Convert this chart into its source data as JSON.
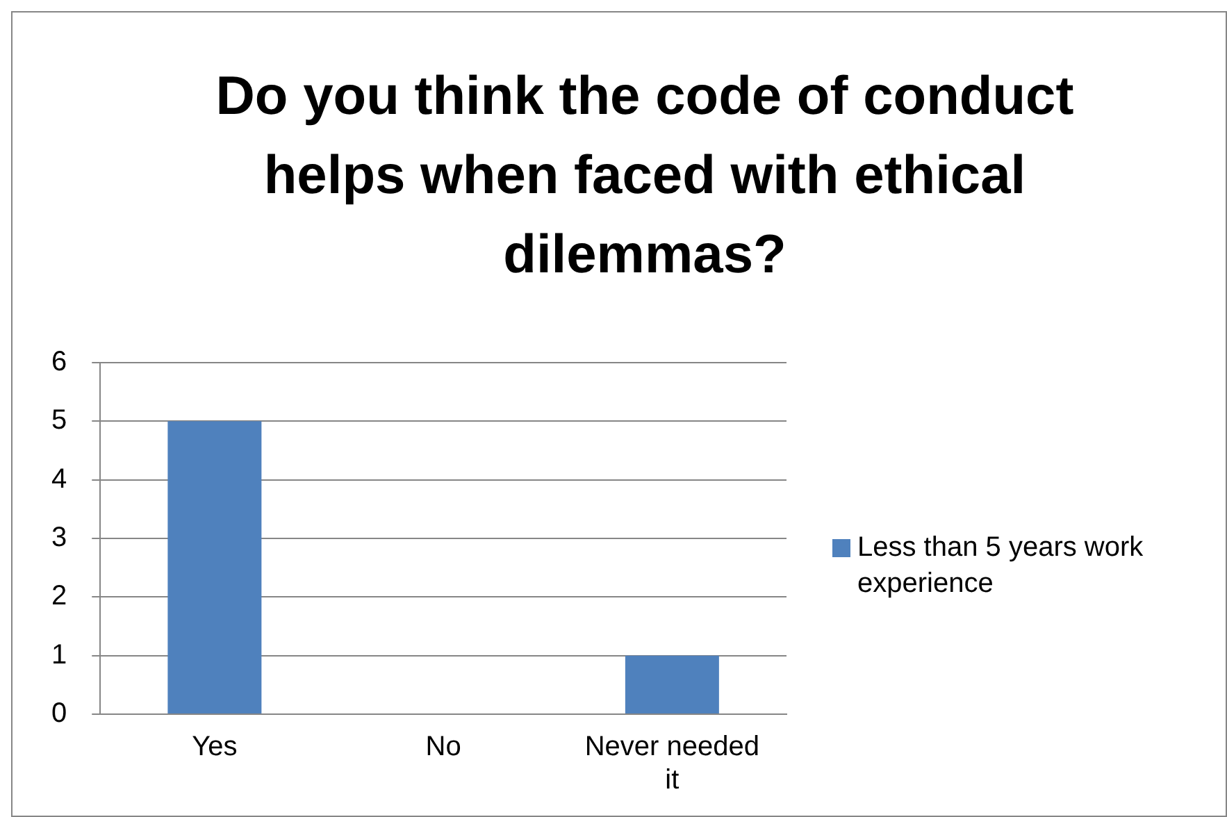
{
  "chart_data": {
    "type": "bar",
    "title": "Do you think the code of conduct helps when faced with ethical dilemmas?",
    "categories": [
      "Yes",
      "No",
      "Never needed it"
    ],
    "series": [
      {
        "name": "Less than 5 years work experience",
        "color": "#4f81bd",
        "values": [
          5,
          0,
          1
        ]
      }
    ],
    "ylim": [
      0,
      6
    ],
    "yticks": [
      0,
      1,
      2,
      3,
      4,
      5,
      6
    ],
    "grid": "y",
    "legend": "right"
  }
}
